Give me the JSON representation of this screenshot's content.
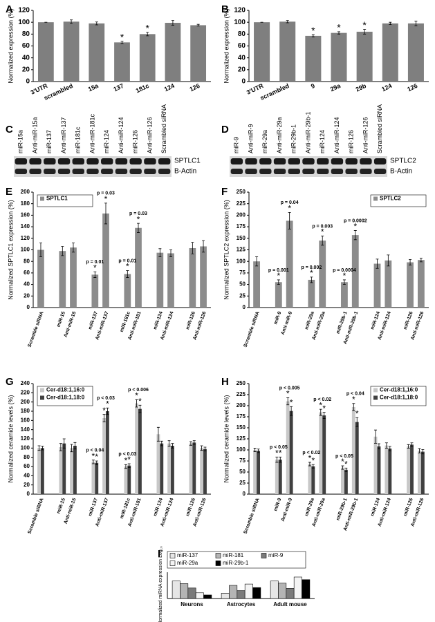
{
  "blots": [
    {
      "panel": "C",
      "lanes": [
        "miR-15a",
        "Anti-miR-15a",
        "miR-137",
        "Anti-miR-137",
        "miR-181c",
        "Anti-miR-181c",
        "miR-124",
        "Anti-miR-124",
        "miR-126",
        "Anti-miR-126",
        "Scrambled siRNA"
      ],
      "bands": [
        "SPTLC1",
        "B-Actin"
      ]
    },
    {
      "panel": "D",
      "lanes": [
        "miR-9",
        "Anti-miR-9",
        "miR-29a",
        "Anti-miR-29a",
        "miR-29b-1",
        "Anti-miR-29b-1",
        "miR-124",
        "Anti-miR-124",
        "miR-126",
        "Anti-miR-126",
        "Scrambled siRNA"
      ],
      "bands": [
        "SPTLC2",
        "B-Actin"
      ]
    }
  ],
  "chart_data": [
    {
      "type": "bar",
      "panel": "A",
      "y_label": "Normalized expression (%)",
      "categories": [
        "3'UTR",
        "scrambled",
        "15a",
        "137",
        "181c",
        "124",
        "126"
      ],
      "values": [
        100,
        101,
        98,
        66,
        80,
        99,
        95
      ],
      "errors": [
        0,
        3,
        2.5,
        2,
        3,
        4,
        1.5
      ],
      "color": "#7f7f7f",
      "ylim": [
        0,
        120
      ],
      "yticks": [
        0,
        20,
        40,
        60,
        80,
        100,
        120
      ],
      "annotations": [
        {
          "category": "137",
          "star": "*"
        },
        {
          "category": "181c",
          "star": "*"
        }
      ]
    },
    {
      "type": "bar",
      "panel": "B",
      "y_label": "Normalized expression (%)",
      "categories": [
        "3'UTR",
        "scrambled",
        "9",
        "29a",
        "29b",
        "124",
        "126"
      ],
      "values": [
        100,
        101,
        77,
        82,
        84,
        98,
        98
      ],
      "errors": [
        0,
        2,
        2,
        2,
        4,
        2,
        4
      ],
      "color": "#7f7f7f",
      "ylim": [
        0,
        120
      ],
      "yticks": [
        0,
        20,
        40,
        60,
        80,
        100,
        120
      ],
      "annotations": [
        {
          "category": "9",
          "star": "*"
        },
        {
          "category": "29a",
          "star": "*"
        },
        {
          "category": "29b",
          "star": "*"
        }
      ]
    },
    {
      "type": "bar",
      "panel": "E",
      "y_label": "Normalized SPTLC1 expression (%)",
      "name": "SPTLC1",
      "legend": "upper left",
      "categories": [
        "Scramble siRNA",
        "miR-15",
        "Anti-miR-15",
        "miR-137",
        "Anti-miR-137",
        "miR-181c",
        "Anti-miR-181",
        "miR-124",
        "Anti-miR-124",
        "miR-126",
        "Anti-miR-126"
      ],
      "values": [
        100,
        98,
        104,
        57,
        163,
        58,
        138,
        95,
        94,
        103,
        106
      ],
      "errors": [
        12,
        8,
        8,
        5,
        18,
        6,
        8,
        7,
        6,
        10,
        10
      ],
      "color": "#8c8c8c",
      "ylim": [
        0,
        200
      ],
      "yticks": [
        0,
        20,
        40,
        60,
        80,
        100,
        120,
        140,
        160,
        180,
        200
      ],
      "annotations": [
        {
          "category": "miR-137",
          "text": "p = 0.01",
          "star": "*"
        },
        {
          "category": "Anti-miR-137",
          "text": "p = 0.03",
          "star": "*"
        },
        {
          "category": "miR-181c",
          "text": "p = 0.01",
          "star": "*"
        },
        {
          "category": "Anti-miR-181",
          "text": "p = 0.03",
          "star": "*"
        }
      ]
    },
    {
      "type": "bar",
      "panel": "F",
      "y_label": "Normalized SPTLC2 expression (%)",
      "name": "SPTLC2",
      "legend": "upper right",
      "categories": [
        "Scramble siRNA",
        "miR-9",
        "Anti-miR-9",
        "miR-29a",
        "Anti-miR-29a",
        "miR-29b-1",
        "Anti-miR-29b-1",
        "miR-124",
        "Anti-miR-124",
        "miR-126",
        "Anti-miR-126"
      ],
      "values": [
        100,
        55,
        188,
        60,
        145,
        55,
        157,
        95,
        102,
        98,
        103
      ],
      "errors": [
        10,
        5,
        18,
        6,
        10,
        5,
        10,
        10,
        12,
        6,
        4
      ],
      "color": "#8c8c8c",
      "ylim": [
        0,
        250
      ],
      "yticks": [
        0,
        25,
        50,
        75,
        100,
        125,
        150,
        175,
        200,
        225,
        250
      ],
      "annotations": [
        {
          "category": "miR-9",
          "text": "p = 0.001",
          "star": "*"
        },
        {
          "category": "Anti-miR-9",
          "text": "p = 0.04",
          "star": "*"
        },
        {
          "category": "miR-29a",
          "text": "p = 0.002",
          "star": "*"
        },
        {
          "category": "Anti-miR-29a",
          "text": "p = 0.003",
          "star": "*"
        },
        {
          "category": "miR-29b-1",
          "text": "p = 0.0004",
          "star": "*"
        },
        {
          "category": "Anti-miR-29b-1",
          "text": "p = 0.0002",
          "star": "*"
        }
      ]
    },
    {
      "type": "bar",
      "panel": "G",
      "y_label": "Normalized ceramide levels (%)",
      "legend": "upper left",
      "categories": [
        "Scramble siRNA",
        "miR-15",
        "Anti-miR-15",
        "miR-137",
        "Anti-miR-137",
        "miR-181c",
        "Anti-miR-181",
        "miR-124",
        "Anti-miR-124",
        "miR-126",
        "Anti-miR-126"
      ],
      "series": [
        {
          "name": "Cer-d18:1,16:0",
          "color": "#c8c8c8",
          "values": [
            100,
            102,
            100,
            70,
            165,
            60,
            197,
            130,
            110,
            110,
            100
          ],
          "errors": [
            5,
            8,
            8,
            4,
            8,
            4,
            8,
            15,
            6,
            4,
            5
          ]
        },
        {
          "name": "Cer-d18:1,18:0",
          "color": "#404040",
          "values": [
            100,
            110,
            105,
            68,
            180,
            62,
            185,
            110,
            105,
            112,
            98
          ],
          "errors": [
            4,
            10,
            7,
            4,
            7,
            4,
            8,
            5,
            5,
            4,
            4
          ]
        }
      ],
      "ylim": [
        0,
        240
      ],
      "yticks": [
        0,
        20,
        40,
        60,
        80,
        100,
        120,
        140,
        160,
        180,
        200,
        220,
        240
      ],
      "annotations": [
        {
          "category": "miR-137",
          "text": "p < 0.04",
          "star": "*"
        },
        {
          "category": "Anti-miR-137",
          "text": "p < 0.03",
          "star": "*"
        },
        {
          "category": "miR-181c",
          "text": "p < 0.03",
          "star": "*"
        },
        {
          "category": "Anti-miR-181",
          "text": "p < 0.006",
          "star": "*"
        }
      ]
    },
    {
      "type": "bar",
      "panel": "H",
      "y_label": "Normalized ceramide levels (%)",
      "legend": "upper right",
      "categories": [
        "Scramble siRNA",
        "miR-9",
        "Anti-miR-9",
        "miR-29a",
        "Anti-miR-29a",
        "miR-29b-1",
        "Anti-miR-29b-1",
        "miR-124",
        "Anti-miR-124",
        "miR-126",
        "Anti-miR-126"
      ],
      "series": [
        {
          "name": "Cer-d18:1,16:0",
          "color": "#c8c8c8",
          "values": [
            100,
            78,
            210,
            68,
            185,
            60,
            197,
            130,
            110,
            108,
            98
          ],
          "errors": [
            4,
            6,
            8,
            4,
            7,
            4,
            8,
            15,
            6,
            4,
            5
          ]
        },
        {
          "name": "Cer-d18:1,18:0",
          "color": "#404040",
          "values": [
            98,
            78,
            188,
            63,
            178,
            55,
            163,
            108,
            103,
            112,
            96
          ],
          "errors": [
            4,
            6,
            10,
            4,
            7,
            4,
            10,
            6,
            5,
            4,
            5
          ]
        }
      ],
      "ylim": [
        0,
        250
      ],
      "yticks": [
        0,
        25,
        50,
        75,
        100,
        125,
        150,
        175,
        200,
        225,
        250
      ],
      "annotations": [
        {
          "category": "miR-9",
          "text": "p < 0.05",
          "star": "*"
        },
        {
          "category": "Anti-miR-9",
          "text": "p < 0.005",
          "star": "*"
        },
        {
          "category": "miR-29a",
          "text": "p < 0.02",
          "star": "*"
        },
        {
          "category": "Anti-miR-29a",
          "text": "p < 0.02",
          "star": "*"
        },
        {
          "category": "miR-29b-1",
          "text": "p < 0.05",
          "star": "*"
        },
        {
          "category": "Anti-miR-29b-1",
          "text": "p < 0.04",
          "star": "*"
        }
      ]
    },
    {
      "type": "bar",
      "panel": "I",
      "y_label": "Normalized miRNA expression Log₁₀",
      "legend": "top",
      "categories": [
        "Neurons",
        "Astrocytes",
        "Adult mouse"
      ],
      "series": [
        {
          "name": "miR-137",
          "color": "#e6e6e6",
          "values": [
            4.0,
            1.2,
            4.0
          ]
        },
        {
          "name": "miR-181",
          "color": "#b4b4b4",
          "values": [
            3.4,
            3.0,
            3.5
          ]
        },
        {
          "name": "miR-9",
          "color": "#7a7a7a",
          "values": [
            2.4,
            1.8,
            2.3
          ]
        },
        {
          "name": "miR-29a",
          "color": "#f4f4f4",
          "values": [
            1.3,
            3.3,
            4.9
          ]
        },
        {
          "name": "miR-29b-1",
          "color": "#000000",
          "values": [
            0.8,
            2.5,
            4.3
          ]
        }
      ],
      "ylim": [
        0,
        6
      ]
    }
  ]
}
